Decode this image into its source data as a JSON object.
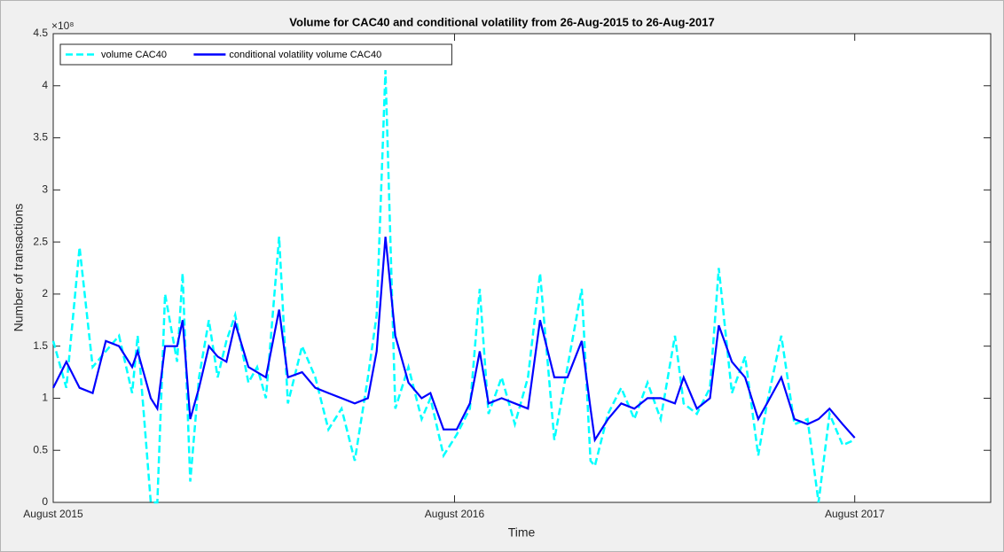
{
  "chart_data": {
    "type": "line",
    "title": "Volume for CAC40 and conditional volatility from 26-Aug-2015 to 26-Aug-2017",
    "x_label": "Time",
    "y_label": "Number of transactions",
    "y_multiplier": "×10⁸",
    "x": [
      736202,
      736214,
      736226,
      736238,
      736250,
      736262,
      736274,
      736279,
      736291,
      736297,
      736304,
      736315,
      736320,
      736327,
      736335,
      736344,
      736352,
      736360,
      736368,
      736380,
      736388,
      736396,
      736408,
      736416,
      736429,
      736441,
      736453,
      736465,
      736477,
      736489,
      736497,
      736505,
      736514,
      736526,
      736538,
      736546,
      736558,
      736570,
      736582,
      736591,
      736599,
      736611,
      736623,
      736635,
      736646,
      736659,
      736671,
      736684,
      736692,
      736696,
      736708,
      736720,
      736732,
      736744,
      736756,
      736769,
      736777,
      736789,
      736801,
      736809,
      736821,
      736833,
      736845,
      736853,
      736866,
      736878,
      736890,
      736900,
      736910,
      736922,
      736933
    ],
    "series": [
      {
        "name": "volume CAC40",
        "color": "#00ffff",
        "linestyle": "dashed",
        "values": [
          1.55,
          1.1,
          2.45,
          1.3,
          1.45,
          1.6,
          1.05,
          1.6,
          0.0,
          0.0,
          2.0,
          1.35,
          2.2,
          0.2,
          1.2,
          1.75,
          1.2,
          1.55,
          1.8,
          1.15,
          1.3,
          1.0,
          2.55,
          0.95,
          1.5,
          1.2,
          0.7,
          0.9,
          0.4,
          1.2,
          1.8,
          4.15,
          0.9,
          1.3,
          0.8,
          1.0,
          0.45,
          0.65,
          0.9,
          2.05,
          0.85,
          1.2,
          0.75,
          1.2,
          2.2,
          0.6,
          1.3,
          2.05,
          0.4,
          0.35,
          0.85,
          1.1,
          0.8,
          1.15,
          0.8,
          1.6,
          0.95,
          0.85,
          1.1,
          2.25,
          1.05,
          1.4,
          0.45,
          0.95,
          1.6,
          0.75,
          0.8,
          0.0,
          0.85,
          0.55,
          0.6
        ]
      },
      {
        "name": "conditional volatility volume CAC40",
        "color": "#0000ff",
        "linestyle": "solid",
        "values": [
          1.1,
          1.35,
          1.1,
          1.05,
          1.55,
          1.5,
          1.3,
          1.45,
          1.0,
          0.9,
          1.5,
          1.5,
          1.75,
          0.8,
          1.1,
          1.5,
          1.4,
          1.35,
          1.72,
          1.3,
          1.25,
          1.2,
          1.85,
          1.2,
          1.25,
          1.1,
          1.05,
          1.0,
          0.95,
          1.0,
          1.45,
          2.55,
          1.6,
          1.15,
          1.0,
          1.05,
          0.7,
          0.7,
          0.95,
          1.45,
          0.95,
          1.0,
          0.95,
          0.9,
          1.75,
          1.2,
          1.2,
          1.55,
          0.9,
          0.6,
          0.8,
          0.95,
          0.9,
          1.0,
          1.0,
          0.95,
          1.2,
          0.9,
          1.0,
          1.7,
          1.35,
          1.2,
          0.8,
          0.95,
          1.2,
          0.8,
          0.75,
          0.8,
          0.9,
          0.75,
          0.62
        ]
      }
    ],
    "xlim": [
      736202,
      737057
    ],
    "xticks": [
      {
        "value": 736202,
        "label": "August 2015"
      },
      {
        "value": 736568,
        "label": "August 2016"
      },
      {
        "value": 736933,
        "label": "August 2017"
      }
    ],
    "ylim": [
      0,
      4.5
    ],
    "yticks": [
      0,
      0.5,
      1,
      1.5,
      2,
      2.5,
      3,
      3.5,
      4,
      4.5
    ],
    "legend": "upper left",
    "grid": false
  }
}
